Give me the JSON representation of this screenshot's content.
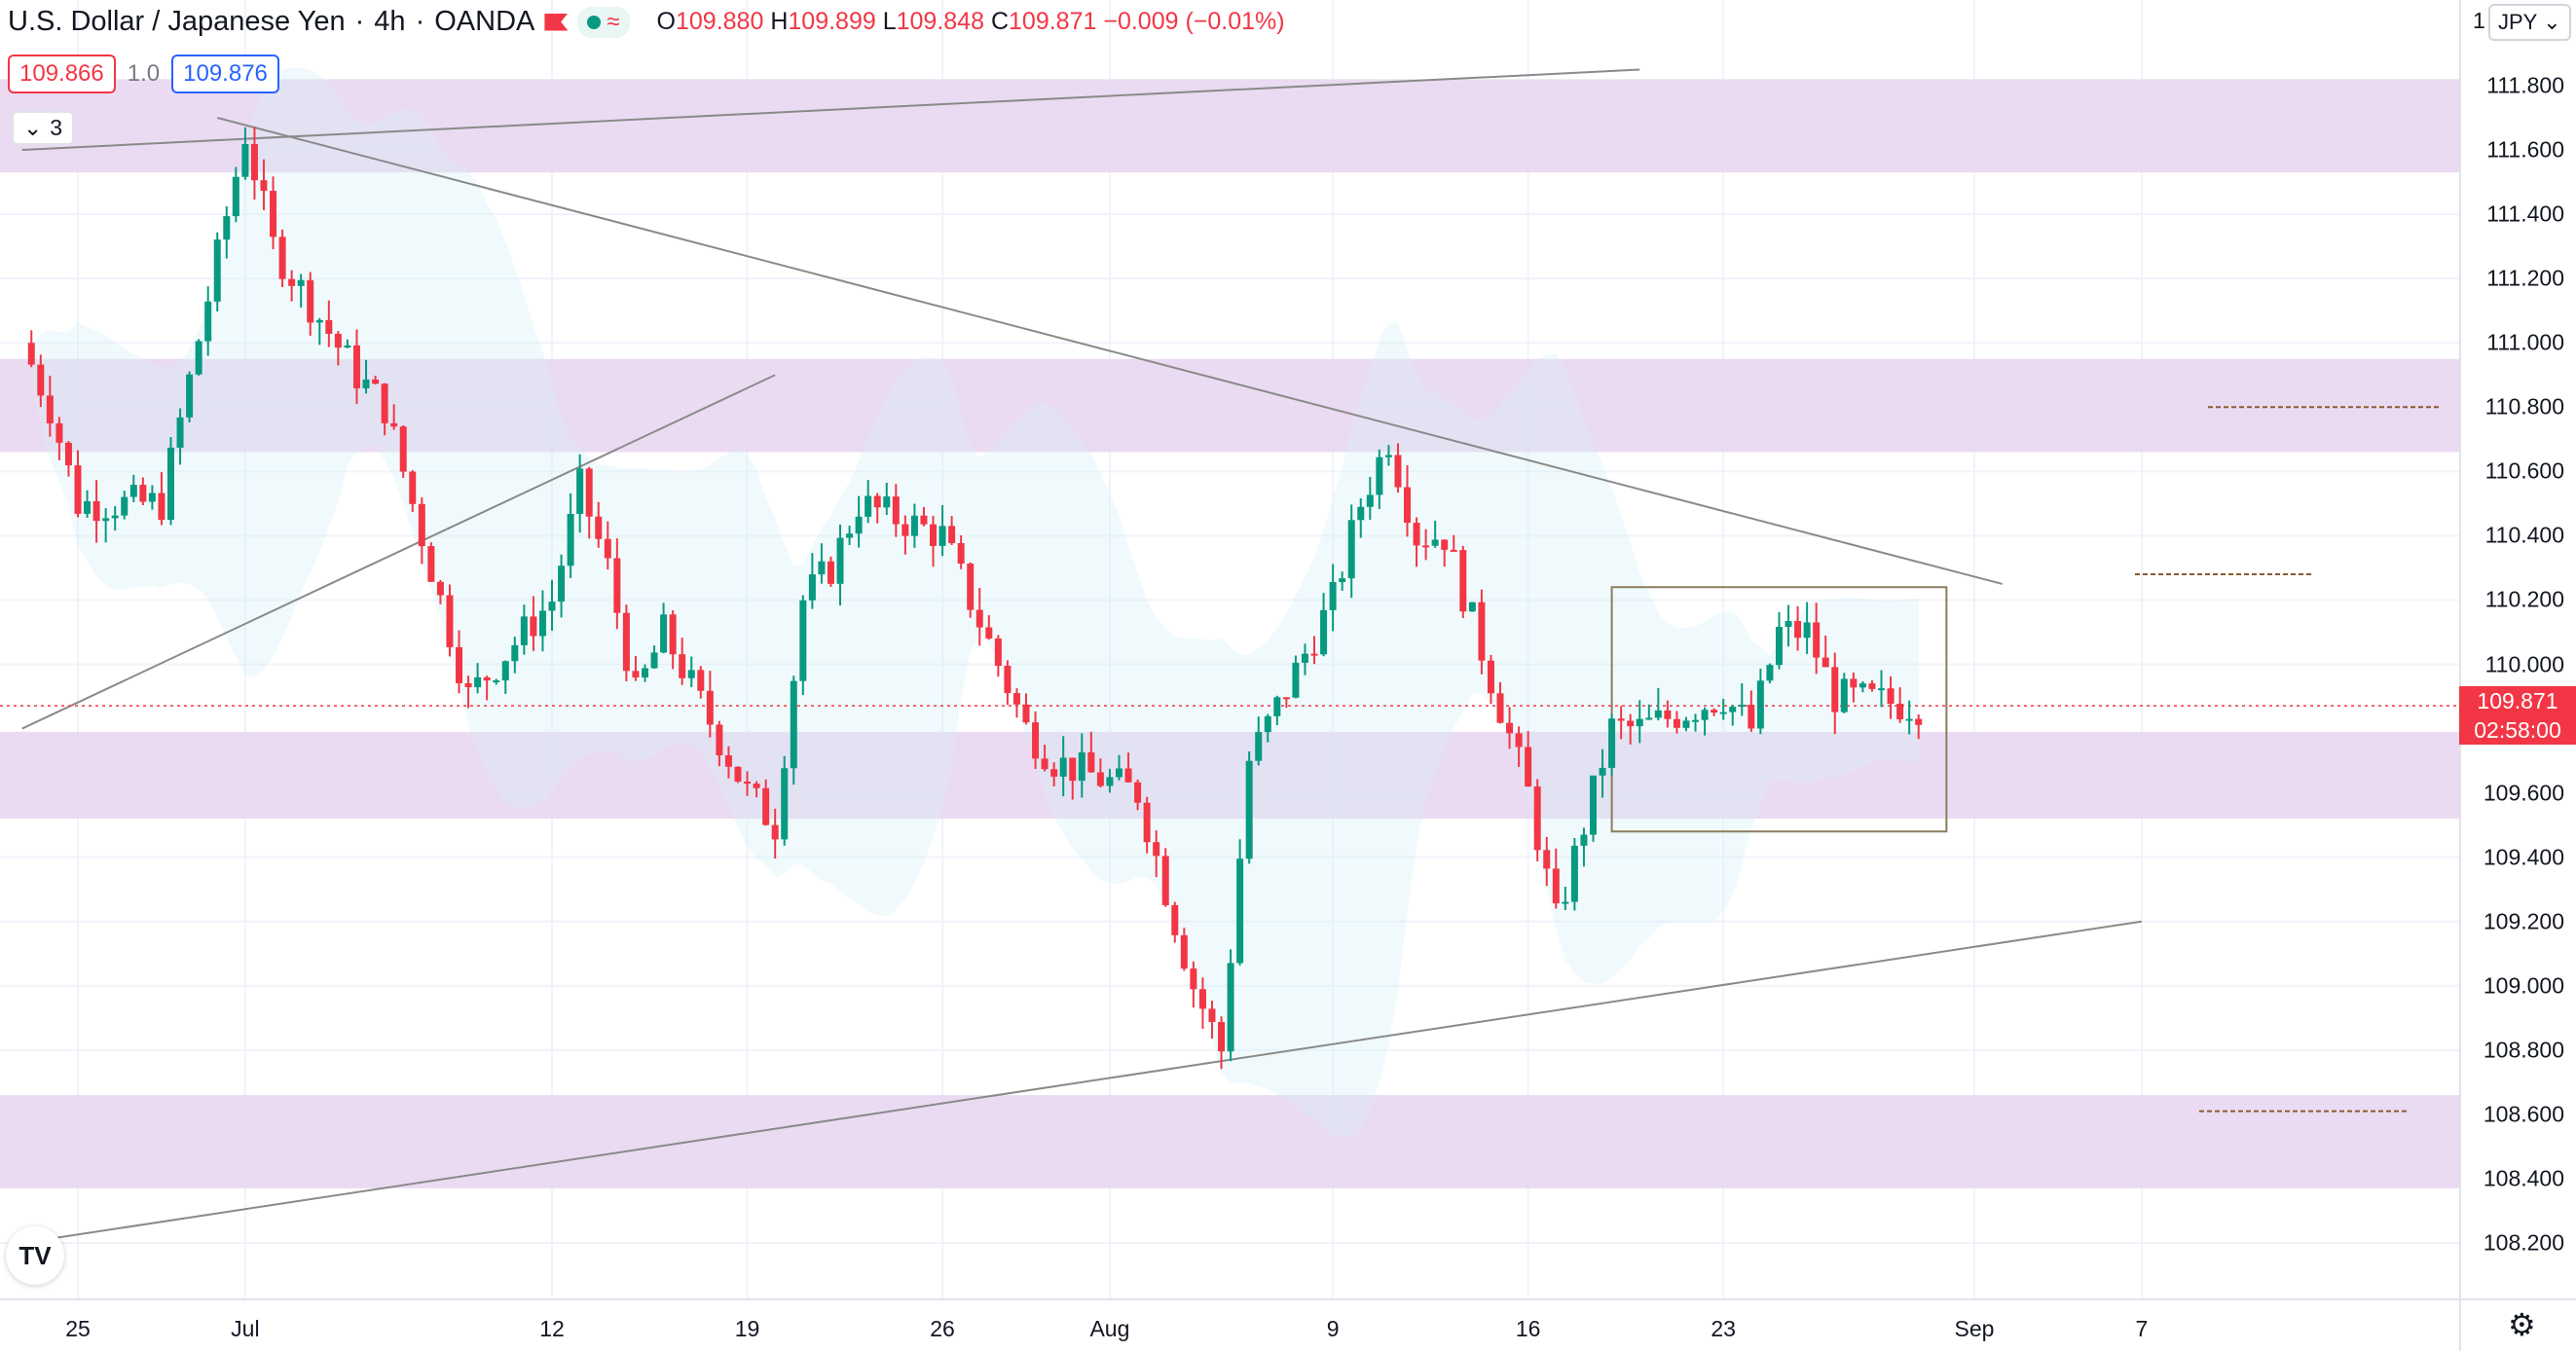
{
  "header": {
    "symbol": "U.S. Dollar / Japanese Yen",
    "interval": "4h",
    "exchange": "OANDA",
    "ohlc": {
      "o_label": "O",
      "o": "109.880",
      "h_label": "H",
      "h": "109.899",
      "l_label": "L",
      "l": "109.848",
      "c_label": "C",
      "c": "109.871",
      "change": "−0.009 (−0.01%)"
    }
  },
  "trade": {
    "sell": "109.866",
    "spread": "1.0",
    "buy": "109.876"
  },
  "collapse": {
    "count": "3"
  },
  "price_scale": {
    "currency": "JPY",
    "top_partial": "1",
    "current_price": "109.871",
    "countdown": "02:58:00"
  },
  "colors": {
    "up": "#089981",
    "down": "#f23645",
    "zone": "#e8d5f0",
    "band": "#d4f0f5",
    "trend": "#8a8a8a",
    "rect": "#8b7d5c"
  },
  "chart_data": {
    "type": "candlestick",
    "title": "U.S. Dollar / Japanese Yen · 4h · OANDA",
    "ylim": [
      108.1,
      111.85
    ],
    "y_ticks": [
      "111.800",
      "111.600",
      "111.400",
      "111.200",
      "111.000",
      "110.800",
      "110.600",
      "110.400",
      "110.200",
      "110.000",
      "109.600",
      "109.400",
      "109.200",
      "109.000",
      "108.800",
      "108.600",
      "108.400",
      "108.200"
    ],
    "x_ticks": [
      "25",
      "Jul",
      "12",
      "19",
      "26",
      "Aug",
      "9",
      "16",
      "23",
      "Sep",
      "7"
    ],
    "key_path": [
      [
        "Jun 23",
        111.0
      ],
      [
        "Jun 24",
        110.8
      ],
      [
        "Jun 25",
        110.5
      ],
      [
        "Jun 28",
        110.5
      ],
      [
        "Jul 1",
        111.65
      ],
      [
        "Jul 2",
        111.3
      ],
      [
        "Jul 5",
        110.9
      ],
      [
        "Jul 6",
        110.8
      ],
      [
        "Jul 7",
        110.5
      ],
      [
        "Jul 8",
        110.2
      ],
      [
        "Jul 9",
        109.9
      ],
      [
        "Jul 12",
        110.2
      ],
      [
        "Jul 13",
        110.55
      ],
      [
        "Jul 14",
        110.3
      ],
      [
        "Jul 15",
        109.9
      ],
      [
        "Jul 16",
        110.1
      ],
      [
        "Jul 19",
        109.6
      ],
      [
        "Jul 20",
        109.5
      ],
      [
        "Jul 21",
        110.2
      ],
      [
        "Jul 22",
        110.3
      ],
      [
        "Jul 23",
        110.5
      ],
      [
        "Jul 26",
        110.4
      ],
      [
        "Jul 27",
        110.2
      ],
      [
        "Jul 28",
        110.0
      ],
      [
        "Jul 29",
        109.8
      ],
      [
        "Jul 30",
        109.7
      ],
      [
        "Aug 2",
        109.6
      ],
      [
        "Aug 3",
        109.3
      ],
      [
        "Aug 4",
        109.0
      ],
      [
        "Aug 5",
        108.8
      ],
      [
        "Aug 6",
        109.7
      ],
      [
        "Aug 9",
        110.2
      ],
      [
        "Aug 10",
        110.5
      ],
      [
        "Aug 11",
        110.7
      ],
      [
        "Aug 12",
        110.4
      ],
      [
        "Aug 13",
        110.4
      ],
      [
        "Aug 16",
        109.6
      ],
      [
        "Aug 17",
        109.2
      ],
      [
        "Aug 18",
        109.5
      ],
      [
        "Aug 19",
        109.8
      ],
      [
        "Aug 20",
        109.8
      ],
      [
        "Aug 23",
        109.9
      ],
      [
        "Aug 24",
        109.8
      ],
      [
        "Aug 25",
        110.1
      ],
      [
        "Aug 26",
        110.1
      ],
      [
        "Aug 27",
        109.9
      ],
      [
        "Aug 30",
        109.871
      ]
    ],
    "zones": [
      [
        111.53,
        111.82
      ],
      [
        110.66,
        110.95
      ],
      [
        109.52,
        109.79
      ],
      [
        108.37,
        108.66
      ]
    ],
    "trendlines": [
      {
        "from": [
          "Jun 23",
          111.6
        ],
        "to": [
          "Aug 20",
          111.85
        ]
      },
      {
        "from": [
          "Jun 30",
          111.7
        ],
        "to": [
          "Sep 2",
          110.25
        ]
      },
      {
        "from": [
          "Jun 23",
          109.8
        ],
        "to": [
          "Jul 20",
          110.9
        ]
      },
      {
        "from": [
          "Jun 23",
          108.2
        ],
        "to": [
          "Sep 7",
          109.2
        ]
      }
    ],
    "consolidation_box": {
      "from": "Aug 19",
      "to": "Aug 31",
      "high": 110.24,
      "low": 109.48
    },
    "targets": [
      110.8,
      110.28,
      108.61
    ],
    "grid": true,
    "legend": "none"
  }
}
